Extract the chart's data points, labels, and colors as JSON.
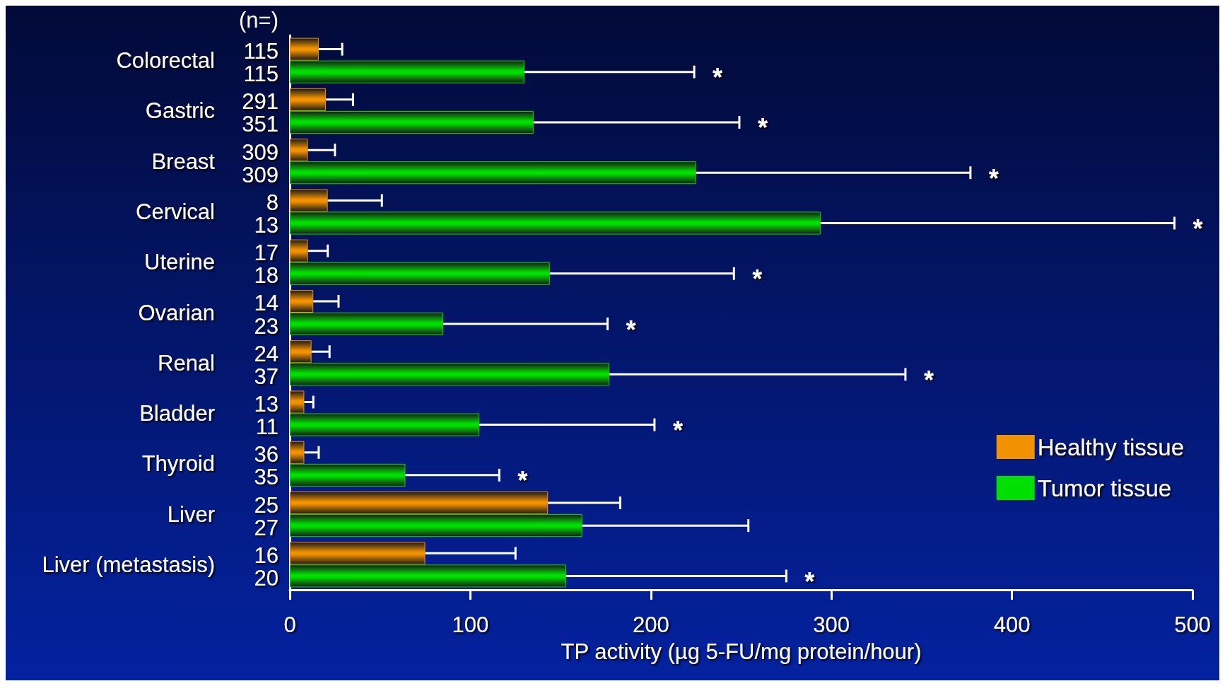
{
  "chart_data": {
    "type": "bar",
    "orientation": "horizontal",
    "xlabel": "TP activity (µg 5-FU/mg protein/hour)",
    "categories": [
      "Colorectal",
      "Gastric",
      "Breast",
      "Cervical",
      "Uterine",
      "Ovarian",
      "Renal",
      "Bladder",
      "Thyroid",
      "Liver",
      "Liver (metastasis)"
    ],
    "series": [
      {
        "name": "Healthy tissue",
        "color": "#f39200",
        "values": [
          16,
          20,
          10,
          21,
          10,
          13,
          12,
          8,
          8,
          143,
          75
        ],
        "errors": [
          [
            16,
            29
          ],
          [
            20,
            35
          ],
          [
            10,
            25
          ],
          [
            21,
            51
          ],
          [
            10,
            21
          ],
          [
            13,
            27
          ],
          [
            12,
            22
          ],
          [
            8,
            13
          ],
          [
            8,
            16
          ],
          [
            143,
            183
          ],
          [
            75,
            125
          ]
        ]
      },
      {
        "name": "Tumor tissue",
        "color": "#00e000",
        "values": [
          130,
          135,
          225,
          294,
          144,
          85,
          177,
          105,
          64,
          162,
          153
        ],
        "errors": [
          [
            130,
            224
          ],
          [
            135,
            249
          ],
          [
            225,
            377
          ],
          [
            294,
            490
          ],
          [
            144,
            246
          ],
          [
            85,
            176
          ],
          [
            177,
            341
          ],
          [
            105,
            202
          ],
          [
            64,
            116
          ],
          [
            162,
            254
          ],
          [
            153,
            275
          ]
        ]
      }
    ],
    "xlim": [
      0,
      500
    ],
    "xticks": [
      0,
      100,
      200,
      300,
      400,
      500
    ],
    "grid": false,
    "legend": "bottom right",
    "annotations": [
      "(n=)",
      "115",
      "115",
      "291",
      "351",
      "309",
      "309",
      "8",
      "13",
      "17",
      "18",
      "14",
      "23",
      "24",
      "37",
      "13",
      "11",
      "36",
      "35",
      "25",
      "27",
      "16",
      "20",
      "*",
      "*",
      "*",
      "*",
      "*",
      "*",
      "*",
      "*",
      "*",
      "*"
    ]
  }
}
